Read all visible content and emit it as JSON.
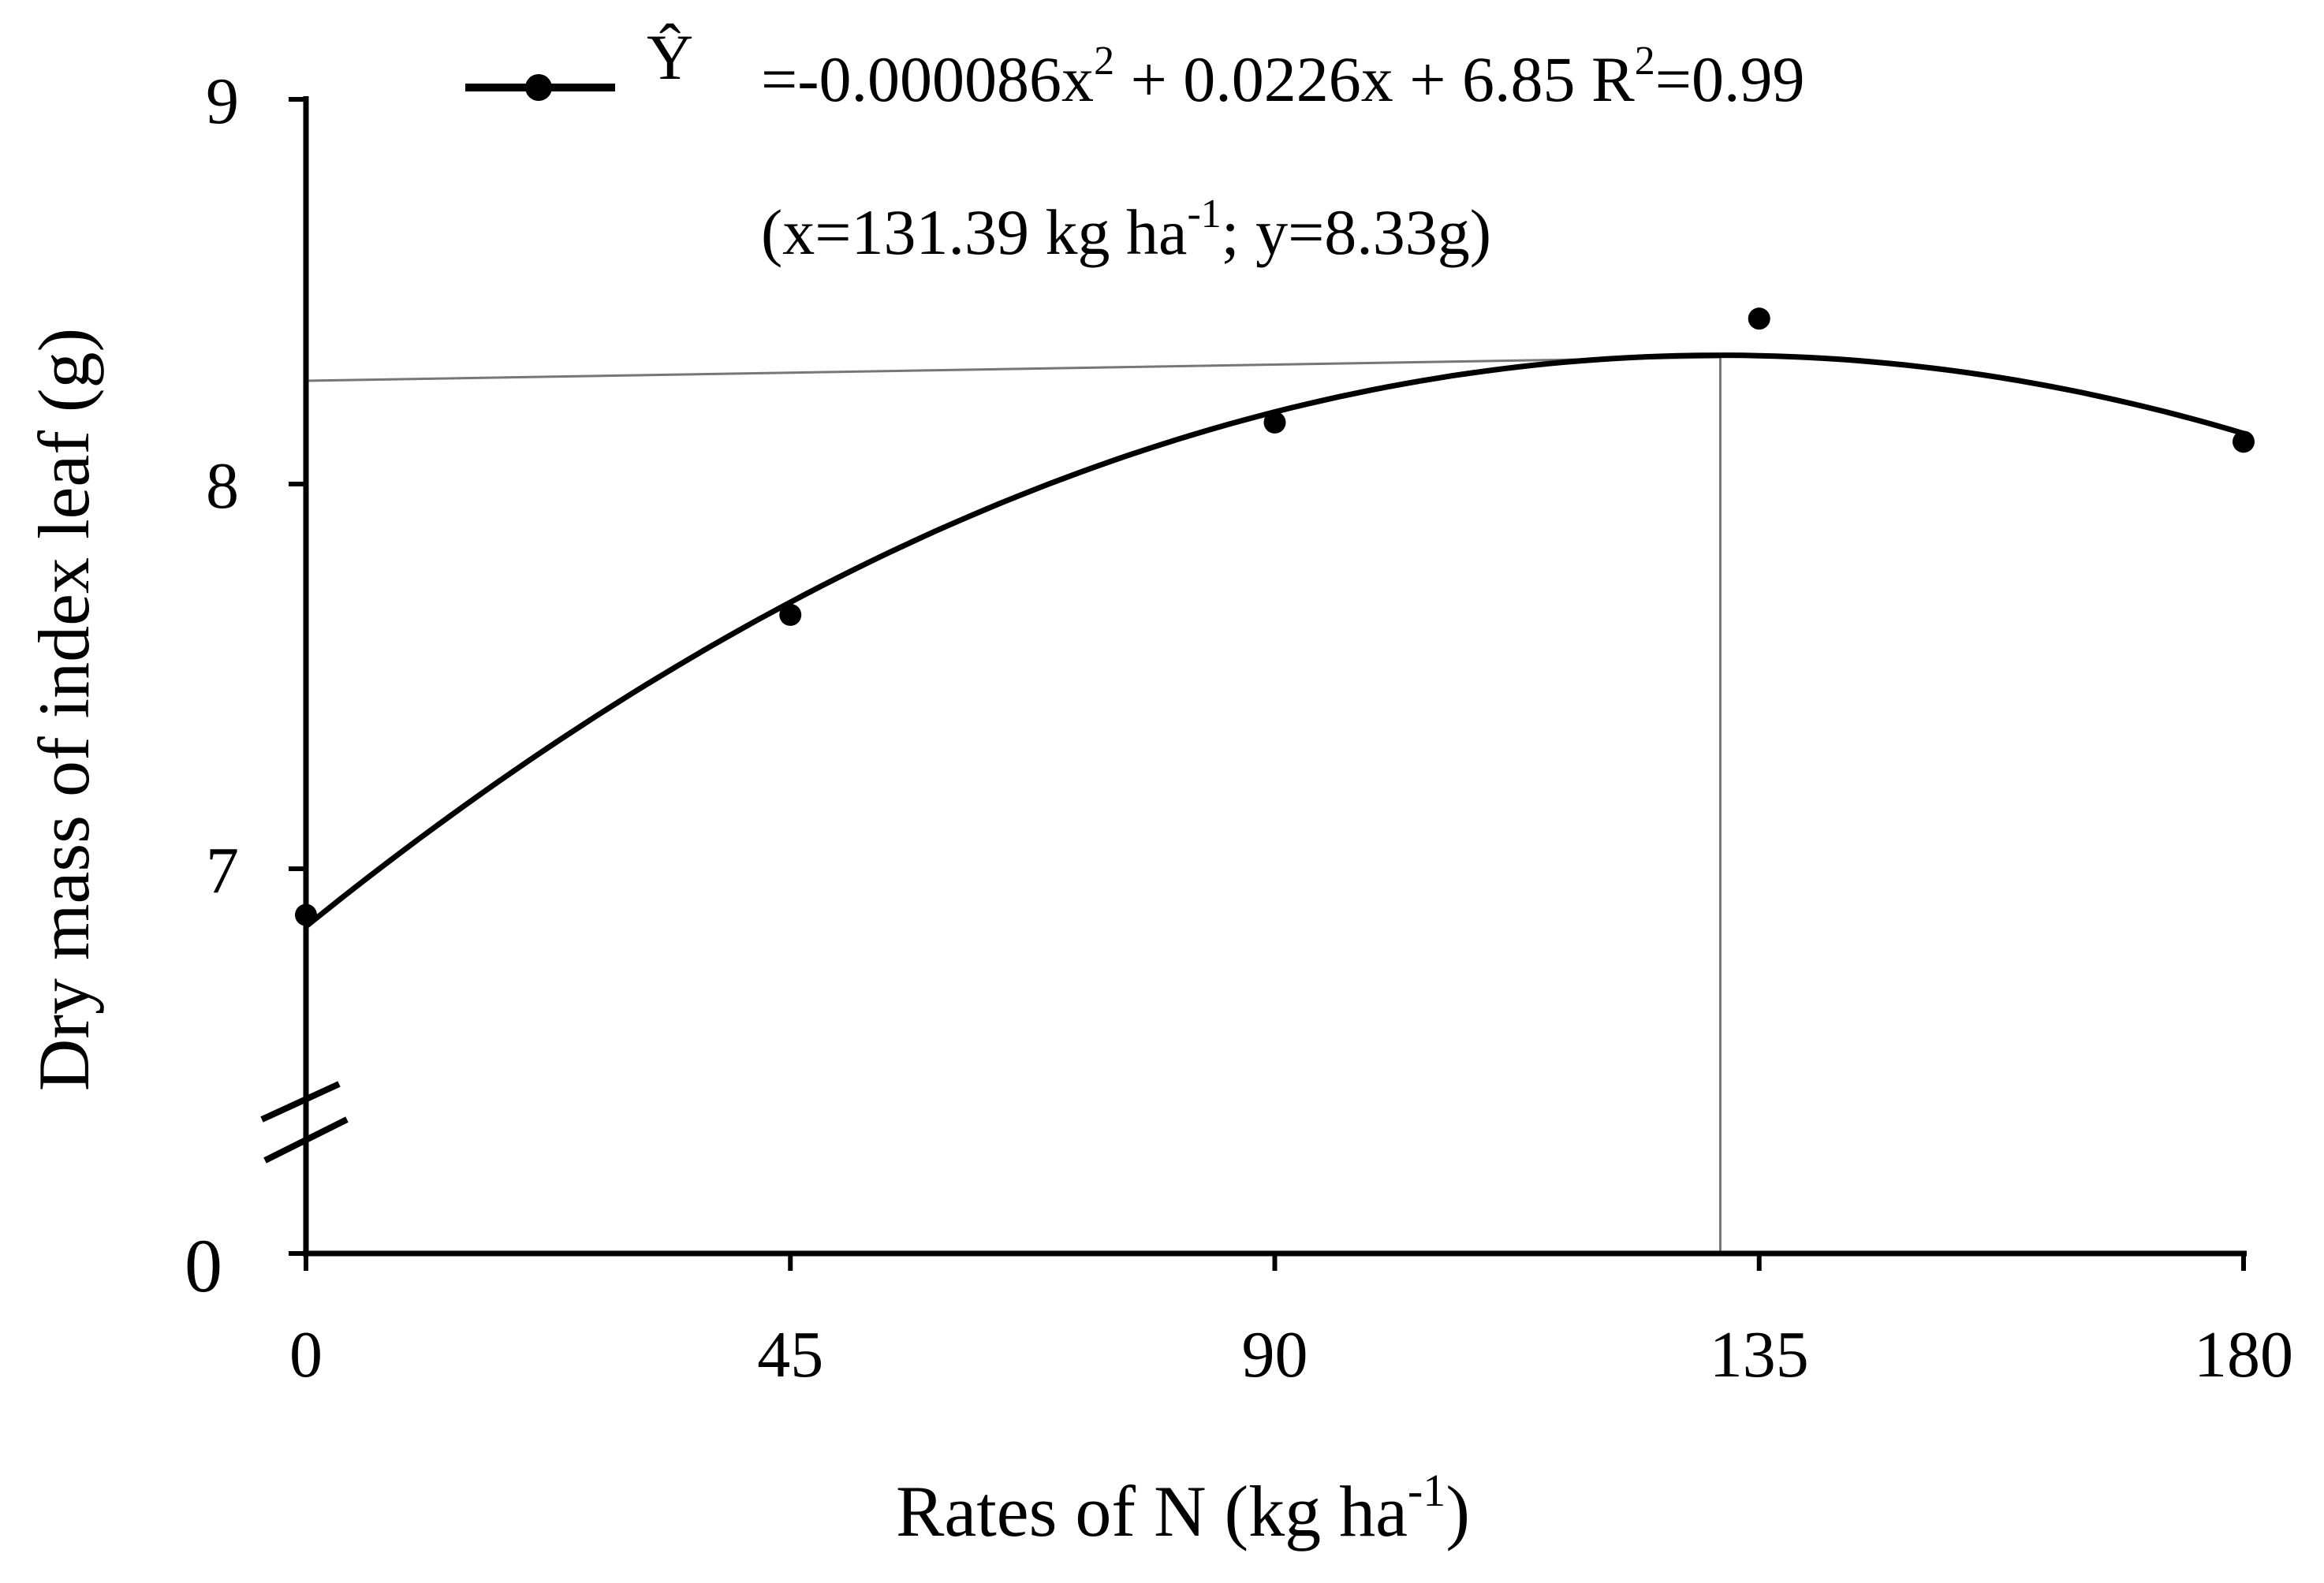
{
  "chart_data": {
    "type": "scatter",
    "xlabel": "Rates of N (kg ha",
    "xlabel_sup": "-1",
    "xlabel_end": ")",
    "ylabel": "Dry mass of index leaf (g)",
    "x_ticks": [
      "0",
      "45",
      "90",
      "135",
      "180"
    ],
    "y_ticks": [
      "0",
      "7",
      "8",
      "9"
    ],
    "xlim": [
      0,
      180
    ],
    "ylim": [
      6.0,
      9
    ],
    "y_axis_break": true,
    "grid": false,
    "legend_position": "top",
    "legend": {
      "symbol": "Ŷ",
      "eq_a": "=-0.000086x",
      "sup_a": "2",
      "eq_b": " + 0.0226x + 6.85 R",
      "sup_b": "2",
      "eq_c": "=0.99"
    },
    "annotation": {
      "a": "(x=131.39 kg ha",
      "sup": "-1",
      "b": "; y=8.33g)"
    },
    "points": [
      {
        "x": 0,
        "y": 6.88
      },
      {
        "x": 45,
        "y": 7.66
      },
      {
        "x": 90,
        "y": 8.16
      },
      {
        "x": 135,
        "y": 8.43
      },
      {
        "x": 180,
        "y": 8.11
      }
    ],
    "fit": {
      "a": -8.6e-05,
      "b": 0.0226,
      "c": 6.85,
      "x_range": [
        0,
        180
      ]
    },
    "optimum": {
      "x": 131.39,
      "y": 8.33
    },
    "colors": {
      "ink": "#000000",
      "reference_line": "#777777"
    }
  }
}
